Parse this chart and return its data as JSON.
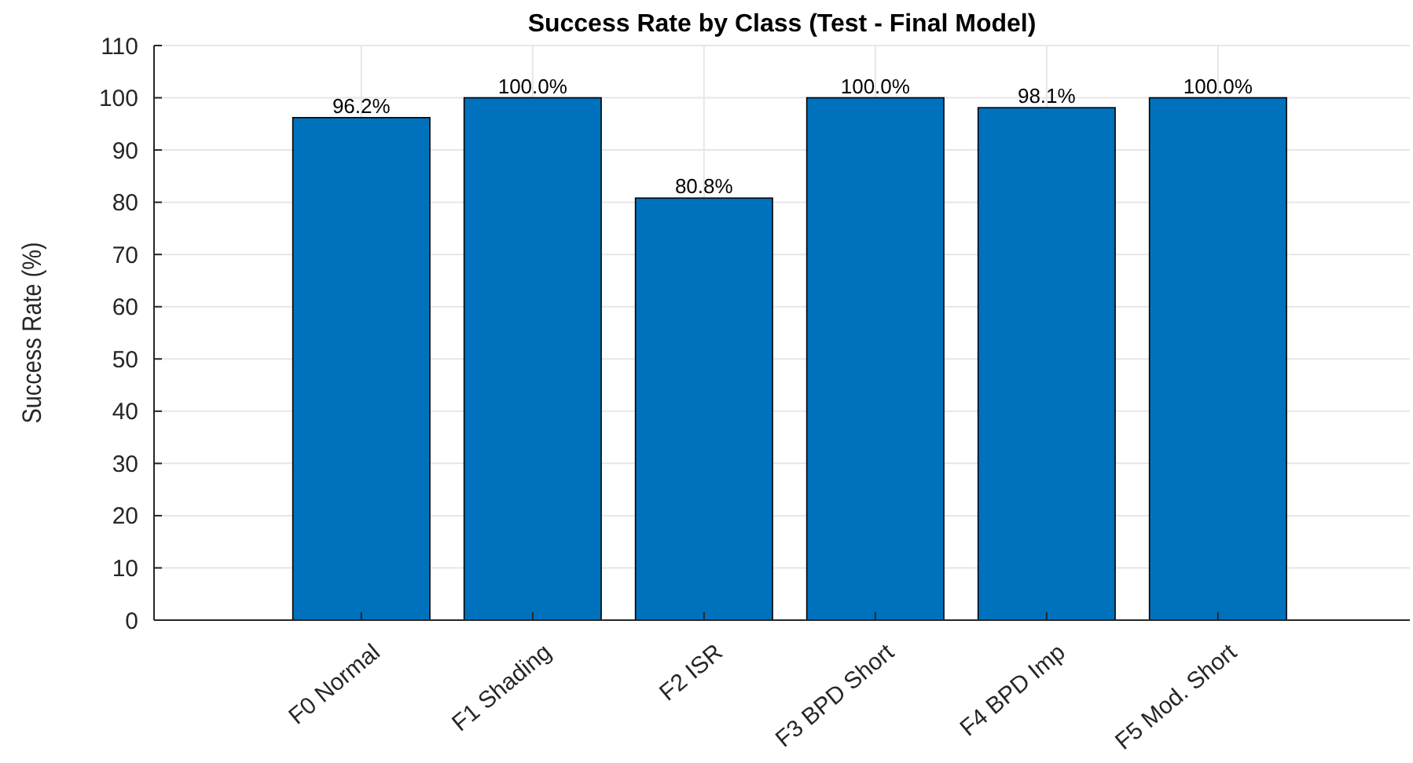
{
  "chart_data": {
    "type": "bar",
    "title": "Success Rate by Class (Test - Final Model)",
    "ylabel": "Success Rate (%)",
    "categories": [
      "F0 Normal",
      "F1 Shading",
      "F2 ISR",
      "F3 BPD Short",
      "F4 BPD Imp",
      "F5 Mod. Short"
    ],
    "values": [
      96.2,
      100.0,
      80.8,
      100.0,
      98.1,
      100.0
    ],
    "value_labels": [
      "96.2%",
      "100.0%",
      "80.8%",
      "100.0%",
      "98.1%",
      "100.0%"
    ],
    "color": "#0072bd",
    "ylim": [
      0,
      110
    ],
    "yticks": [
      0,
      10,
      20,
      30,
      40,
      50,
      60,
      70,
      80,
      90,
      100,
      110
    ],
    "grid": true
  }
}
